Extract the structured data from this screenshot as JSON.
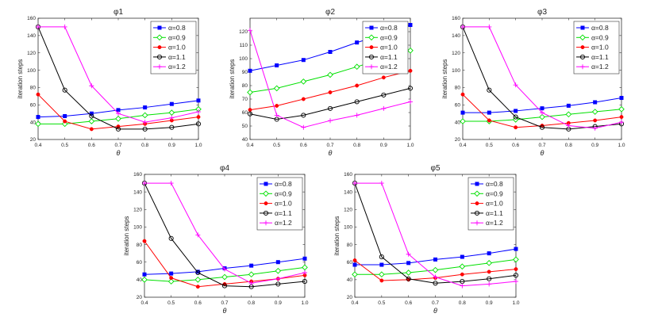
{
  "chart_data": [
    {
      "type": "line",
      "title": "φ1",
      "xlabel": "θ",
      "ylabel": "iteration steps",
      "xlim": [
        0.4,
        1.0
      ],
      "ylim": [
        20,
        160
      ],
      "x": [
        0.4,
        0.5,
        0.6,
        0.7,
        0.8,
        0.9,
        1.0
      ],
      "xticks": [
        "0.4",
        "0.5",
        "0.6",
        "0.7",
        "0.8",
        "0.9",
        "1.0"
      ],
      "yticks": [
        "20",
        "40",
        "60",
        "80",
        "100",
        "120",
        "140",
        "160"
      ],
      "legend_position": "top-right",
      "series": [
        {
          "name": "α=0.8",
          "color": "#0000ff",
          "marker": "square",
          "values": [
            46,
            47,
            50,
            54,
            57,
            61,
            65
          ]
        },
        {
          "name": "α=0.9",
          "color": "#00e000",
          "marker": "diamond",
          "values": [
            38,
            38,
            41,
            44,
            48,
            51,
            55
          ]
        },
        {
          "name": "α=1.0",
          "color": "#ff0000",
          "marker": "dot",
          "values": [
            72,
            41,
            32,
            35,
            38,
            42,
            46
          ]
        },
        {
          "name": "α=1.1",
          "color": "#000000",
          "marker": "circle",
          "values": [
            150,
            77,
            47,
            32,
            32,
            34,
            38
          ]
        },
        {
          "name": "α=1.2",
          "color": "#ff00ff",
          "marker": "plus",
          "values": [
            150,
            150,
            82,
            50,
            40,
            45,
            52
          ]
        }
      ]
    },
    {
      "type": "line",
      "title": "φ2",
      "xlabel": "θ",
      "ylabel": "iteration steps",
      "xlim": [
        0.4,
        1.0
      ],
      "ylim": [
        40,
        130
      ],
      "x": [
        0.4,
        0.5,
        0.6,
        0.7,
        0.8,
        0.9,
        1.0
      ],
      "xticks": [
        "0.4",
        "0.5",
        "0.6",
        "0.7",
        "0.8",
        "0.9",
        "1.0"
      ],
      "yticks": [
        "40",
        "50",
        "60",
        "70",
        "80",
        "90",
        "100",
        "110",
        "120"
      ],
      "legend_position": "top-right",
      "series": [
        {
          "name": "α=0.8",
          "color": "#0000ff",
          "marker": "square",
          "values": [
            91,
            95,
            99,
            105,
            112,
            118,
            125
          ]
        },
        {
          "name": "α=0.9",
          "color": "#00e000",
          "marker": "diamond",
          "values": [
            75,
            78,
            83,
            88,
            94,
            100,
            106
          ]
        },
        {
          "name": "α=1.0",
          "color": "#ff0000",
          "marker": "dot",
          "values": [
            62,
            65,
            70,
            75,
            80,
            86,
            91
          ]
        },
        {
          "name": "α=1.1",
          "color": "#000000",
          "marker": "circle",
          "values": [
            59,
            55,
            58,
            63,
            68,
            73,
            78
          ]
        },
        {
          "name": "α=1.2",
          "color": "#ff00ff",
          "marker": "plus",
          "values": [
            121,
            58,
            49,
            54,
            58,
            63,
            68
          ]
        }
      ]
    },
    {
      "type": "line",
      "title": "φ3",
      "xlabel": "θ",
      "ylabel": "iteration steps",
      "xlim": [
        0.4,
        1.0
      ],
      "ylim": [
        20,
        160
      ],
      "x": [
        0.4,
        0.5,
        0.6,
        0.7,
        0.8,
        0.9,
        1.0
      ],
      "xticks": [
        "0.4",
        "0.5",
        "0.6",
        "0.7",
        "0.8",
        "0.9",
        "1.0"
      ],
      "yticks": [
        "20",
        "40",
        "60",
        "80",
        "100",
        "120",
        "140",
        "160"
      ],
      "legend_position": "top-right",
      "series": [
        {
          "name": "α=0.8",
          "color": "#0000ff",
          "marker": "square",
          "values": [
            51,
            51,
            53,
            56,
            59,
            63,
            68
          ]
        },
        {
          "name": "α=0.9",
          "color": "#00e000",
          "marker": "diamond",
          "values": [
            41,
            41,
            43,
            46,
            49,
            52,
            55
          ]
        },
        {
          "name": "α=1.0",
          "color": "#ff0000",
          "marker": "dot",
          "values": [
            72,
            42,
            34,
            36,
            39,
            42,
            46
          ]
        },
        {
          "name": "α=1.1",
          "color": "#000000",
          "marker": "circle",
          "values": [
            150,
            77,
            46,
            34,
            32,
            35,
            38
          ]
        },
        {
          "name": "α=1.2",
          "color": "#ff00ff",
          "marker": "plus",
          "values": [
            150,
            150,
            83,
            51,
            36,
            33,
            40
          ]
        }
      ]
    },
    {
      "type": "line",
      "title": "φ4",
      "xlabel": "θ",
      "ylabel": "iteration steps",
      "xlim": [
        0.4,
        1.0
      ],
      "ylim": [
        20,
        160
      ],
      "x": [
        0.4,
        0.5,
        0.6,
        0.7,
        0.8,
        0.9,
        1.0
      ],
      "xticks": [
        "0.4",
        "0.5",
        "0.6",
        "0.7",
        "0.8",
        "0.9",
        "1.0"
      ],
      "yticks": [
        "20",
        "40",
        "60",
        "80",
        "100",
        "120",
        "140",
        "160"
      ],
      "legend_position": "top-right",
      "series": [
        {
          "name": "α=0.8",
          "color": "#0000ff",
          "marker": "square",
          "values": [
            46,
            47,
            49,
            53,
            56,
            60,
            64
          ]
        },
        {
          "name": "α=0.9",
          "color": "#00e000",
          "marker": "diamond",
          "values": [
            40,
            38,
            40,
            43,
            46,
            50,
            54
          ]
        },
        {
          "name": "α=1.0",
          "color": "#ff0000",
          "marker": "dot",
          "values": [
            84,
            42,
            32,
            35,
            38,
            41,
            45
          ]
        },
        {
          "name": "α=1.1",
          "color": "#000000",
          "marker": "circle",
          "values": [
            150,
            87,
            48,
            33,
            32,
            35,
            38
          ]
        },
        {
          "name": "α=1.2",
          "color": "#ff00ff",
          "marker": "plus",
          "values": [
            150,
            150,
            91,
            52,
            36,
            41,
            48
          ]
        }
      ]
    },
    {
      "type": "line",
      "title": "φ5",
      "xlabel": "θ",
      "ylabel": "iteration steps",
      "xlim": [
        0.4,
        1.0
      ],
      "ylim": [
        20,
        160
      ],
      "x": [
        0.4,
        0.5,
        0.6,
        0.7,
        0.8,
        0.9,
        1.0
      ],
      "xticks": [
        "0.4",
        "0.5",
        "0.6",
        "0.7",
        "0.8",
        "0.9",
        "1.0"
      ],
      "yticks": [
        "20",
        "40",
        "60",
        "80",
        "100",
        "120",
        "140",
        "160"
      ],
      "legend_position": "top-right",
      "series": [
        {
          "name": "α=0.8",
          "color": "#0000ff",
          "marker": "square",
          "values": [
            57,
            57,
            59,
            63,
            66,
            70,
            75
          ]
        },
        {
          "name": "α=0.9",
          "color": "#00e000",
          "marker": "diamond",
          "values": [
            46,
            46,
            48,
            51,
            55,
            59,
            63
          ]
        },
        {
          "name": "α=1.0",
          "color": "#ff0000",
          "marker": "dot",
          "values": [
            62,
            39,
            40,
            42,
            46,
            49,
            52
          ]
        },
        {
          "name": "α=1.1",
          "color": "#000000",
          "marker": "circle",
          "values": [
            150,
            66,
            41,
            36,
            38,
            41,
            45
          ]
        },
        {
          "name": "α=1.2",
          "color": "#ff00ff",
          "marker": "plus",
          "values": [
            150,
            150,
            69,
            43,
            33,
            35,
            38
          ]
        }
      ]
    }
  ]
}
